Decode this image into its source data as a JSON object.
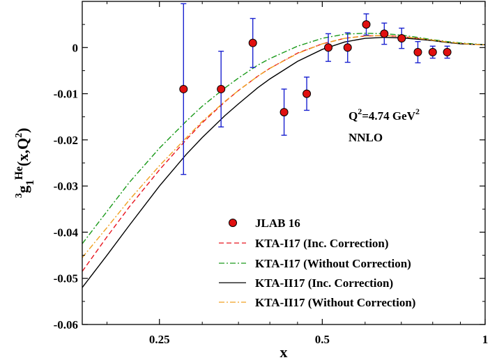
{
  "chart_data": {
    "type": "line",
    "xscale": "log",
    "xlim": [
      0.18,
      1.0
    ],
    "ylim": [
      -0.06,
      0.01
    ],
    "xlabel": "x",
    "ylabel": {
      "prefix_sup": "3",
      "base": "g",
      "sub": "1",
      "sup": "He",
      "args": "(x,Q",
      "args_sup": "2",
      "args_end": ")"
    },
    "x_ticks": [
      {
        "value": 0.25,
        "label": "0.25"
      },
      {
        "value": 0.5,
        "label": "0.5"
      },
      {
        "value": 1.0,
        "label": "1"
      }
    ],
    "y_ticks": [
      {
        "value": 0.0,
        "label": "0"
      },
      {
        "value": -0.01,
        "label": "-0.01"
      },
      {
        "value": -0.02,
        "label": "-0.02"
      },
      {
        "value": -0.03,
        "label": "-0.03"
      },
      {
        "value": -0.04,
        "label": "-0.04"
      },
      {
        "value": -0.05,
        "label": "-0.05"
      },
      {
        "value": -0.06,
        "label": "-0.06"
      }
    ],
    "annotation": {
      "q2_base": "Q",
      "q2_sup": "2",
      "q2_value": "=4.74 GeV",
      "q2_unit_sup": "2",
      "order": "NNLO"
    },
    "points": {
      "name": "JLAB 16",
      "color": "#e01010",
      "error_color": "#1a22d0",
      "data": [
        {
          "x": 0.277,
          "y": -0.009,
          "err": 0.0185
        },
        {
          "x": 0.325,
          "y": -0.009,
          "err": 0.0082
        },
        {
          "x": 0.372,
          "y": 0.001,
          "err": 0.0053
        },
        {
          "x": 0.425,
          "y": -0.014,
          "err": 0.005
        },
        {
          "x": 0.468,
          "y": -0.01,
          "err": 0.0036
        },
        {
          "x": 0.513,
          "y": 0.0,
          "err": 0.003
        },
        {
          "x": 0.557,
          "y": 0.0,
          "err": 0.0032
        },
        {
          "x": 0.603,
          "y": 0.005,
          "err": 0.0023
        },
        {
          "x": 0.651,
          "y": 0.003,
          "err": 0.0023
        },
        {
          "x": 0.701,
          "y": 0.002,
          "err": 0.0022
        },
        {
          "x": 0.751,
          "y": -0.001,
          "err": 0.0023
        },
        {
          "x": 0.8,
          "y": -0.001,
          "err": 0.0013
        },
        {
          "x": 0.851,
          "y": -0.001,
          "err": 0.0013
        }
      ]
    },
    "series": [
      {
        "name": "KTA-I17 (Inc. Correction)",
        "color": "#e8141e",
        "dash": "7,4",
        "x": [
          0.18,
          0.2,
          0.22,
          0.25,
          0.28,
          0.3,
          0.33,
          0.35,
          0.38,
          0.4,
          0.45,
          0.5,
          0.55,
          0.6,
          0.65,
          0.7,
          0.75,
          0.8,
          0.85,
          0.9,
          0.95,
          1.0
        ],
        "y": [
          -0.0485,
          -0.041,
          -0.0345,
          -0.0265,
          -0.02,
          -0.0163,
          -0.0118,
          -0.0093,
          -0.0062,
          -0.0045,
          -0.0012,
          0.0008,
          0.002,
          0.0025,
          0.0026,
          0.0024,
          0.002,
          0.0016,
          0.0012,
          0.0009,
          0.0007,
          0.0006
        ]
      },
      {
        "name": "KTA-I17 (Without Correction)",
        "color": "#1a9a1a",
        "dash": "8,3,2,3",
        "x": [
          0.18,
          0.2,
          0.22,
          0.25,
          0.28,
          0.3,
          0.33,
          0.35,
          0.38,
          0.4,
          0.45,
          0.5,
          0.55,
          0.6,
          0.65,
          0.7,
          0.75,
          0.8,
          0.85,
          0.9,
          0.95,
          1.0
        ],
        "y": [
          -0.0425,
          -0.0355,
          -0.0292,
          -0.0218,
          -0.016,
          -0.0127,
          -0.0088,
          -0.0066,
          -0.0038,
          -0.0024,
          0.0003,
          0.002,
          0.0029,
          0.0031,
          0.003,
          0.0027,
          0.0022,
          0.0017,
          0.0013,
          0.001,
          0.0008,
          0.0006
        ]
      },
      {
        "name": "KTA-II17 (Inc. Correction)",
        "color": "#000000",
        "dash": "",
        "x": [
          0.18,
          0.2,
          0.22,
          0.25,
          0.28,
          0.3,
          0.33,
          0.35,
          0.38,
          0.4,
          0.45,
          0.5,
          0.55,
          0.6,
          0.65,
          0.7,
          0.75,
          0.8,
          0.85,
          0.9,
          0.95,
          1.0
        ],
        "y": [
          -0.052,
          -0.045,
          -0.0385,
          -0.03,
          -0.0232,
          -0.0195,
          -0.0148,
          -0.0122,
          -0.0087,
          -0.0068,
          -0.003,
          -0.0004,
          0.0012,
          0.002,
          0.0022,
          0.0021,
          0.0018,
          0.0015,
          0.0011,
          0.0008,
          0.0007,
          0.0006
        ]
      },
      {
        "name": "KTA-II17 (Without Correction)",
        "color": "#f0a020",
        "dash": "8,3,2,3",
        "x": [
          0.18,
          0.2,
          0.22,
          0.25,
          0.28,
          0.3,
          0.33,
          0.35,
          0.38,
          0.4,
          0.45,
          0.5,
          0.55,
          0.6,
          0.65,
          0.7,
          0.75,
          0.8,
          0.85,
          0.9,
          0.95,
          1.0
        ],
        "y": [
          -0.0455,
          -0.039,
          -0.033,
          -0.0256,
          -0.0196,
          -0.016,
          -0.0117,
          -0.0093,
          -0.0062,
          -0.0045,
          -0.0013,
          0.0008,
          0.002,
          0.0025,
          0.0026,
          0.0024,
          0.002,
          0.0016,
          0.0012,
          0.0009,
          0.0007,
          0.0006
        ]
      }
    ]
  }
}
